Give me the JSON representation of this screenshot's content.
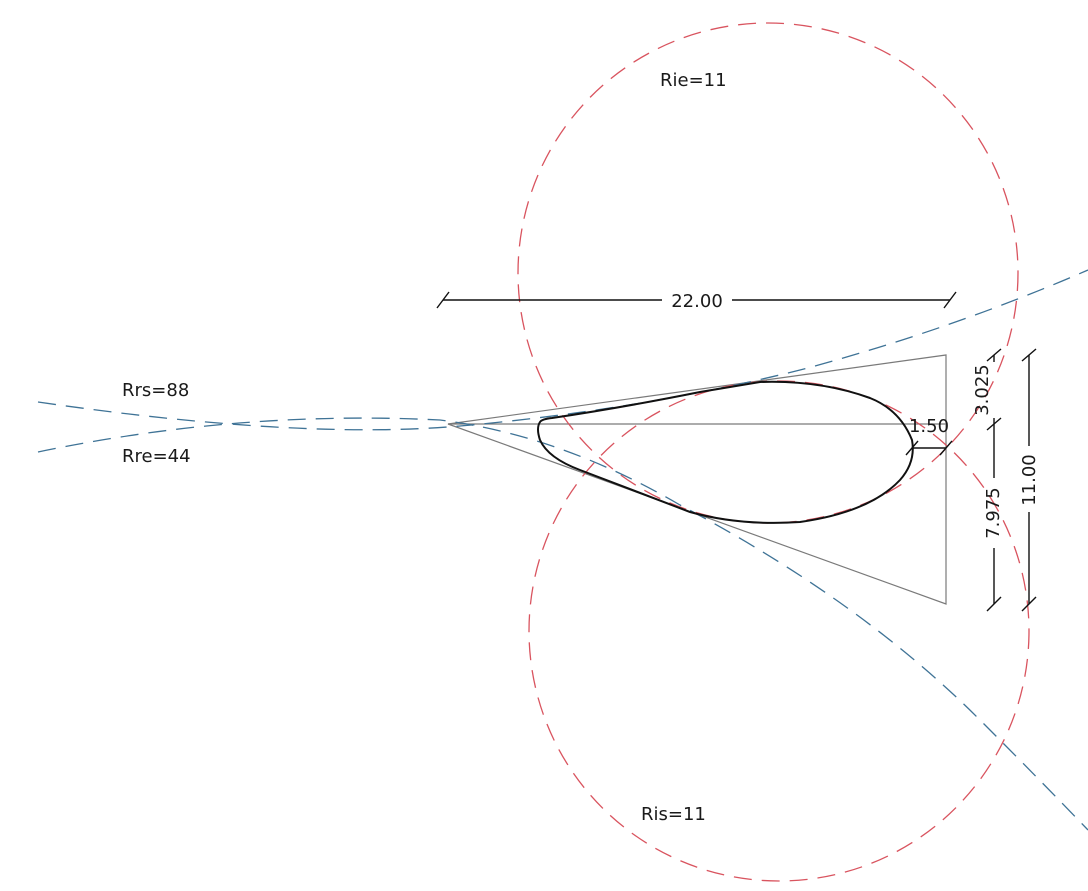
{
  "labels": {
    "rie": "Rie=11",
    "ris": "Ris=11",
    "rrs": "Rrs=88",
    "rre": "Rre=44"
  },
  "dimensions": {
    "width": "22.00",
    "thickness": "1.50",
    "upper": "3.025",
    "lower": "7.975",
    "height": "11.00"
  },
  "colors": {
    "red_circle": "#d9545f",
    "blue_curve": "#3f7396",
    "profile": "#111111",
    "guide": "#7a7a7a",
    "dimension": "#111111"
  }
}
